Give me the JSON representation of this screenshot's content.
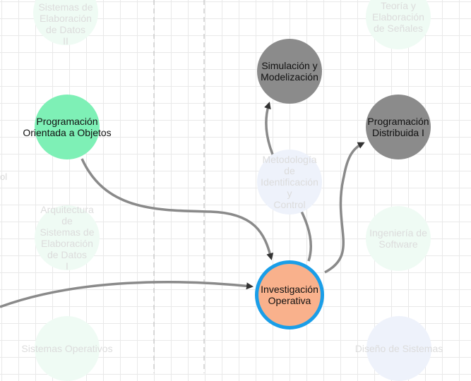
{
  "colors": {
    "active_green": "#7ef0b6",
    "active_gray": "#8b8b8b",
    "active_orange": "#f9b18c",
    "selected_ring": "#1a9ee8",
    "faded_green": "#effbf4",
    "faded_blue": "#eef2fb",
    "edge": "#8a8a8a",
    "arrow": "#333333"
  },
  "nodes": {
    "arq_datos_ii": "Arquitectura de\nSistemas de\nElaboración de Datos\nII",
    "teoria_senales": "Teoría y Elaboración\nde Señales",
    "simulacion": "Simulación y\nModelización",
    "programacion_oo": "Programación\nOrientada a Objetos",
    "programacion_distribuida": "Programación\nDistribuida I",
    "metodologia": "Metodología de\nIdentificación y\nControl",
    "arq_datos_i": "Arquitectura de\nSistemas de\nElaboración de Datos\nI",
    "ingenieria_software": "Ingeniería de\nSoftware",
    "investigacion_operativa": "Investigación\nOperativa",
    "sistemas_operativos": "Sistemas Operativos",
    "diseno_sistemas": "Diseño de Sistemas"
  },
  "side_fragments": {
    "left_mid": "ol"
  }
}
